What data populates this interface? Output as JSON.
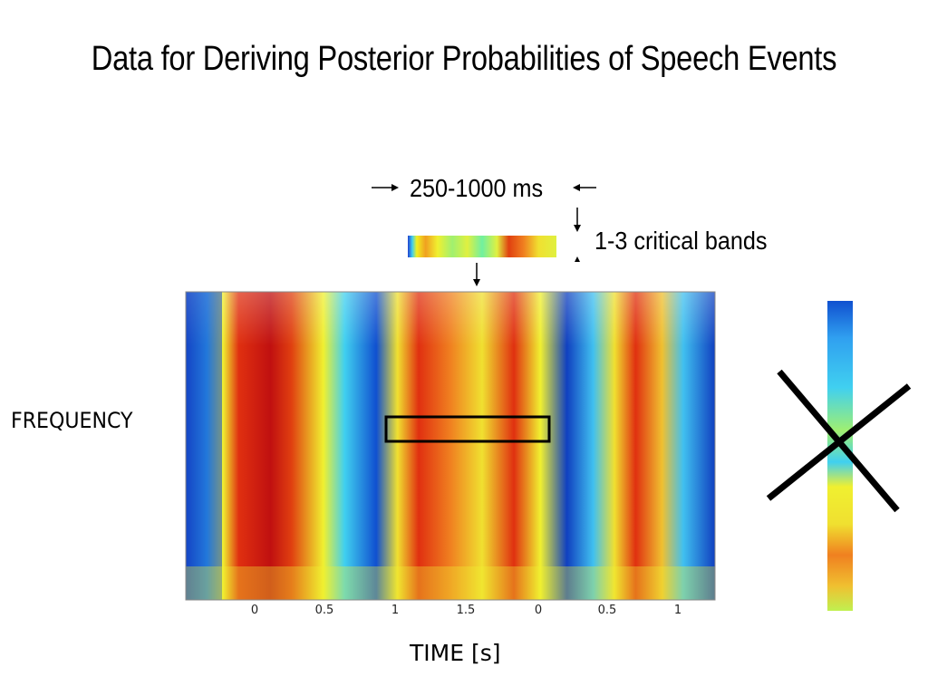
{
  "title": "Data for Deriving Posterior Probabilities of Speech Events",
  "duration_label": "250-1000 ms",
  "band_label": "1-3 critical bands",
  "y_axis_label": "FREQUENCY",
  "x_axis_label": "TIME [s]",
  "x_ticks": [
    "0",
    "0.5",
    "1",
    "1.5",
    "0",
    "0.5",
    "1"
  ],
  "colors": {
    "cross": "#000000",
    "box": "#000000"
  },
  "icons": [
    "right-arrow-icon",
    "left-arrow-icon",
    "down-arrow-icon",
    "up-arrow-icon",
    "cross-out-icon"
  ]
}
